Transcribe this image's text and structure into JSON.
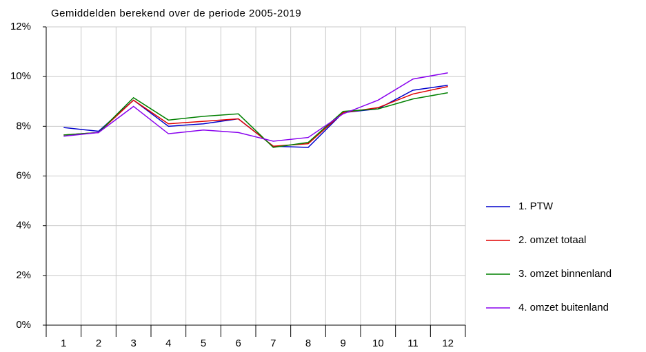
{
  "chart_data": {
    "type": "line",
    "title": "Gemiddelden berekend over de periode   2005-2019",
    "categories": [
      "1",
      "2",
      "3",
      "4",
      "5",
      "6",
      "7",
      "8",
      "9",
      "10",
      "11",
      "12"
    ],
    "series": [
      {
        "name": "1. PTW",
        "color": "#0000cc",
        "values": [
          7.95,
          7.8,
          9.05,
          8.0,
          8.1,
          8.3,
          7.2,
          7.15,
          8.55,
          8.7,
          9.45,
          9.65
        ]
      },
      {
        "name": "2. omzet totaal",
        "color": "#e00000",
        "values": [
          7.65,
          7.75,
          9.05,
          8.1,
          8.2,
          8.3,
          7.2,
          7.3,
          8.55,
          8.75,
          9.3,
          9.6
        ]
      },
      {
        "name": "3. omzet binnenland",
        "color": "#008000",
        "values": [
          7.65,
          7.75,
          9.15,
          8.25,
          8.4,
          8.5,
          7.15,
          7.35,
          8.6,
          8.7,
          9.1,
          9.35
        ]
      },
      {
        "name": "4. omzet buitenland",
        "color": "#8800ee",
        "values": [
          7.6,
          7.75,
          8.8,
          7.7,
          7.85,
          7.75,
          7.4,
          7.55,
          8.5,
          9.05,
          9.9,
          10.15
        ]
      }
    ],
    "ylim": [
      0,
      12
    ],
    "yticks": [
      {
        "value": 0,
        "label": "0%"
      },
      {
        "value": 2,
        "label": "2%"
      },
      {
        "value": 4,
        "label": "4%"
      },
      {
        "value": 6,
        "label": "6%"
      },
      {
        "value": 8,
        "label": "8%"
      },
      {
        "value": 10,
        "label": "10%"
      },
      {
        "value": 12,
        "label": "12%"
      }
    ],
    "grid": true,
    "legend": "right"
  }
}
